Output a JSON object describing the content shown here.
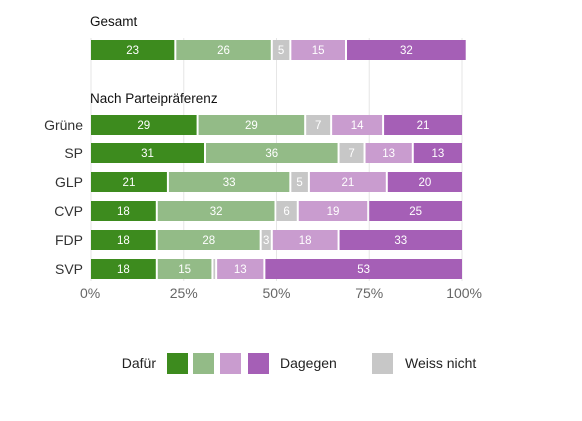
{
  "chart_data": {
    "type": "bar",
    "orientation": "horizontal",
    "stacked": true,
    "xlim": [
      0,
      100
    ],
    "x_ticks": [
      "0%",
      "25%",
      "50%",
      "75%",
      "100%"
    ],
    "grid": true,
    "legend_placement": "bottom",
    "series": [
      {
        "key": "s1",
        "color": "#3d8b1e"
      },
      {
        "key": "s2",
        "color": "#93bb87"
      },
      {
        "key": "s3",
        "color": "#c7c7c7"
      },
      {
        "key": "s4",
        "color": "#c99ccf"
      },
      {
        "key": "s5",
        "color": "#a55fb6"
      }
    ],
    "groups": [
      {
        "title": "Gesamt",
        "rows": [
          {
            "label": "",
            "values": [
              23,
              26,
              5,
              15,
              32
            ]
          }
        ]
      },
      {
        "title": "Nach Parteipräferenz",
        "rows": [
          {
            "label": "Grüne",
            "values": [
              29,
              29,
              7,
              14,
              21
            ]
          },
          {
            "label": "SP",
            "values": [
              31,
              36,
              7,
              13,
              13
            ]
          },
          {
            "label": "GLP",
            "values": [
              21,
              33,
              5,
              21,
              20
            ]
          },
          {
            "label": "CVP",
            "values": [
              18,
              32,
              6,
              19,
              25
            ]
          },
          {
            "label": "FDP",
            "values": [
              18,
              28,
              3,
              18,
              33
            ]
          },
          {
            "label": "SVP",
            "values": [
              18,
              15,
              1,
              13,
              53
            ]
          }
        ]
      }
    ],
    "legend": {
      "left_label": "Dafür",
      "scale_series": [
        "s1",
        "s2",
        "s4",
        "s5"
      ],
      "right_label": "Dagegen",
      "neutral_series": "s3",
      "neutral_label": "Weiss nicht"
    }
  }
}
